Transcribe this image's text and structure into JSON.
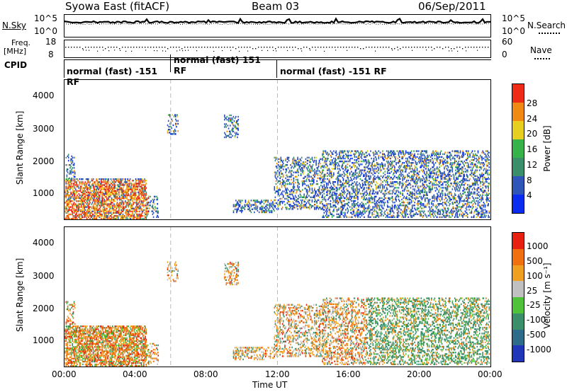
{
  "header": {
    "station": "Syowa East (fitACF)",
    "beam": "Beam 03",
    "date": "06/Sep/2011"
  },
  "noise_panel": {
    "left_label": "N.Sky",
    "right_label": "N.Search",
    "left_ticks": [
      "10^5",
      "10^0"
    ],
    "right_ticks": [
      "10^5",
      "10^0"
    ]
  },
  "freq_panel": {
    "left_label_1": "Freq.",
    "left_label_2": "[MHz]",
    "left_ticks": [
      "18",
      "8"
    ],
    "right_label": "Nave",
    "right_ticks": [
      "60",
      "0"
    ]
  },
  "cpid": {
    "label": "CPID",
    "segments": [
      {
        "text": "normal (fast) -151 RF",
        "start": 0,
        "end": 6
      },
      {
        "text": "normal (fast) 151 RF",
        "start": 6,
        "end": 12
      },
      {
        "text": "normal (fast) -151 RF",
        "start": 12,
        "end": 24
      }
    ]
  },
  "chart_data": [
    {
      "type": "heatmap",
      "title": "",
      "xlabel": "Time UT",
      "ylabel": "Slant Range [km]",
      "xlim": [
        0,
        24
      ],
      "ylim": [
        180,
        4500
      ],
      "y_ticks": [
        "1000",
        "2000",
        "3000",
        "4000"
      ],
      "colorbar_label": "Power [dB]",
      "colorbar_ticks": [
        "4",
        "8",
        "12",
        "16",
        "20",
        "24",
        "28"
      ],
      "colorbar_colors": [
        "#0a2cf0",
        "#2f55b8",
        "#3a8f6a",
        "#35b24a",
        "#e6cf1f",
        "#f08a12",
        "#ee2c16"
      ]
    },
    {
      "type": "heatmap",
      "title": "",
      "xlabel": "Time UT",
      "ylabel": "Slant Range [km]",
      "xlim": [
        0,
        24
      ],
      "ylim": [
        180,
        4500
      ],
      "y_ticks": [
        "1000",
        "2000",
        "3000",
        "4000"
      ],
      "colorbar_label": "Velocity [m s⁻¹]",
      "colorbar_ticks": [
        "1000",
        "500",
        "100",
        "25",
        "-25",
        "-100",
        "-500",
        "-1000"
      ],
      "colorbar_colors": [
        "#2035b8",
        "#2e6a8a",
        "#3a8f6a",
        "#4fc23a",
        "#c0c0c0",
        "#f0a020",
        "#f07010",
        "#e82010"
      ]
    }
  ],
  "x_axis": {
    "ticks": [
      "00:00",
      "04:00",
      "08:00",
      "12:00",
      "16:00",
      "20:00",
      "00:00"
    ],
    "label": "Time UT"
  }
}
